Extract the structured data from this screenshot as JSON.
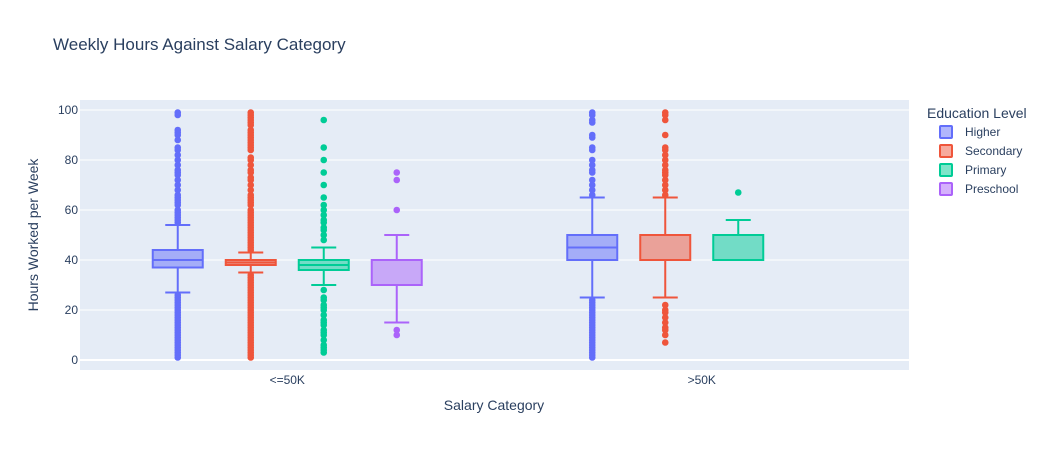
{
  "chart_data": {
    "type": "box",
    "title": "Weekly Hours Against Salary Category",
    "xlabel": "Salary Category",
    "ylabel": "Hours Worked per Week",
    "categories": [
      "<=50K",
      ">50K"
    ],
    "ylim": [
      -4,
      104
    ],
    "yticks": [
      0,
      20,
      40,
      60,
      80,
      100
    ],
    "grid": true,
    "legend": {
      "title": "Education Level",
      "placement": "right"
    },
    "series": [
      {
        "name": "Higher",
        "color": "#636efa",
        "boxes": [
          {
            "category": "<=50K",
            "q1": 37,
            "median": 40,
            "q3": 44,
            "lower_whisker": 27,
            "upper_whisker": 54,
            "outliers": [
              1,
              2,
              3,
              4,
              5,
              6,
              7,
              8,
              9,
              10,
              11,
              12,
              13,
              14,
              15,
              16,
              17,
              18,
              19,
              20,
              21,
              22,
              23,
              24,
              25,
              26,
              55,
              56,
              57,
              58,
              59,
              60,
              62,
              63,
              64,
              65,
              66,
              68,
              70,
              72,
              74,
              75,
              76,
              78,
              80,
              82,
              84,
              85,
              88,
              90,
              91,
              92,
              98,
              99
            ]
          },
          {
            "category": ">50K",
            "q1": 40,
            "median": 45,
            "q3": 50,
            "lower_whisker": 25,
            "upper_whisker": 65,
            "outliers": [
              1,
              2,
              3,
              4,
              5,
              6,
              7,
              8,
              9,
              10,
              11,
              12,
              13,
              14,
              15,
              16,
              17,
              18,
              19,
              20,
              21,
              22,
              23,
              24,
              66,
              68,
              70,
              72,
              75,
              76,
              78,
              80,
              84,
              85,
              89,
              90,
              95,
              96,
              98,
              99
            ]
          }
        ]
      },
      {
        "name": "Secondary",
        "color": "#ef553b",
        "boxes": [
          {
            "category": "<=50K",
            "q1": 38,
            "median": 39,
            "q3": 40,
            "lower_whisker": 35,
            "upper_whisker": 43,
            "outliers": [
              1,
              2,
              3,
              4,
              5,
              6,
              7,
              8,
              9,
              10,
              11,
              12,
              13,
              14,
              15,
              16,
              17,
              18,
              19,
              20,
              21,
              22,
              23,
              24,
              25,
              26,
              27,
              28,
              29,
              30,
              31,
              32,
              33,
              34,
              44,
              45,
              46,
              47,
              48,
              49,
              50,
              51,
              52,
              53,
              54,
              55,
              56,
              57,
              58,
              59,
              60,
              62,
              63,
              64,
              65,
              66,
              68,
              70,
              72,
              73,
              75,
              76,
              78,
              80,
              81,
              84,
              85,
              86,
              87,
              88,
              89,
              90,
              91,
              92,
              94,
              95,
              96,
              97,
              98,
              99
            ]
          },
          {
            "category": ">50K",
            "q1": 40,
            "median": 40,
            "q3": 50,
            "lower_whisker": 25,
            "upper_whisker": 65,
            "outliers": [
              7,
              10,
              12,
              13,
              15,
              17,
              19,
              20,
              22,
              66,
              68,
              70,
              72,
              74,
              75,
              76,
              78,
              80,
              82,
              84,
              85,
              90,
              96,
              98,
              99
            ]
          }
        ]
      },
      {
        "name": "Primary",
        "color": "#00cc96",
        "boxes": [
          {
            "category": "<=50K",
            "q1": 36,
            "median": 38,
            "q3": 40,
            "lower_whisker": 30,
            "upper_whisker": 45,
            "outliers": [
              3,
              4,
              5,
              6,
              8,
              10,
              11,
              12,
              14,
              15,
              16,
              18,
              20,
              21,
              22,
              24,
              25,
              28,
              48,
              50,
              52,
              53,
              55,
              56,
              58,
              60,
              62,
              65,
              70,
              75,
              80,
              85,
              96
            ]
          },
          {
            "category": ">50K",
            "q1": 40,
            "median": 40,
            "q3": 50,
            "lower_whisker": 40,
            "upper_whisker": 56,
            "outliers": [
              67
            ]
          }
        ]
      },
      {
        "name": "Preschool",
        "color": "#ab63fa",
        "boxes": [
          {
            "category": "<=50K",
            "q1": 30,
            "median": 40,
            "q3": 40,
            "lower_whisker": 15,
            "upper_whisker": 50,
            "outliers": [
              10,
              12,
              60,
              72,
              75
            ]
          }
        ]
      }
    ]
  }
}
